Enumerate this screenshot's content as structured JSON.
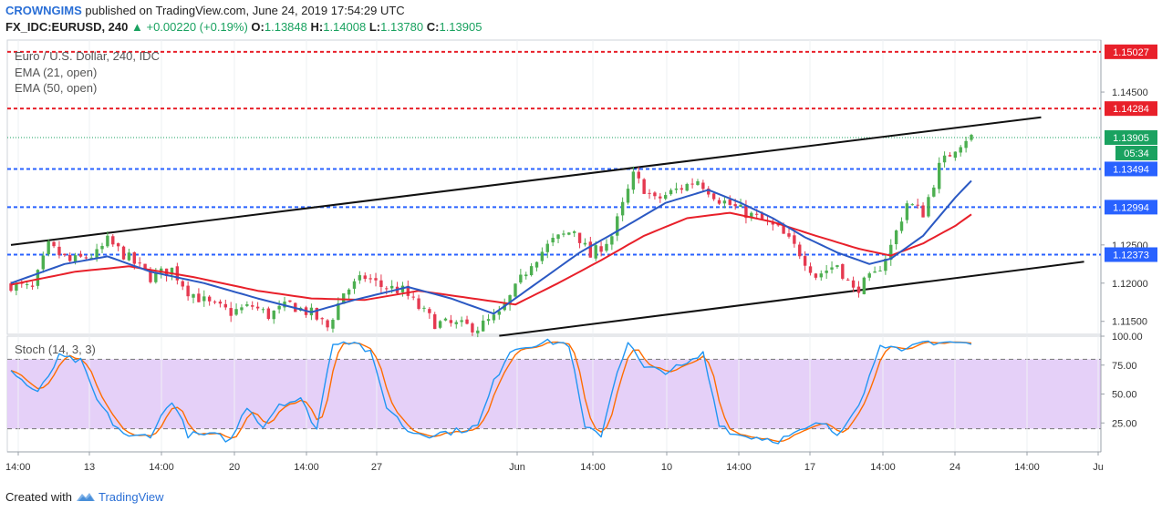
{
  "header": {
    "publisher": "CROWNGIMS",
    "published_text": "published on TradingView.com, June 24, 2019 17:54:29 UTC",
    "symbol": "FX_IDC:EURUSD, 240",
    "change": "▲ +0.00220 (+0.19%)",
    "open_label": "O:",
    "open": "1.13848",
    "high_label": "H:",
    "high": "1.14008",
    "low_label": "L:",
    "low": "1.13780",
    "close_label": "C:",
    "close": "1.13905"
  },
  "legend": {
    "title": "Euro / U.S. Dollar, 240, IDC",
    "ema21": "EMA (21, open)",
    "ema50": "EMA (50, open)",
    "stoch": "Stoch (14, 3, 3)"
  },
  "footer": {
    "created_with": "Created with",
    "brand": "TradingView"
  },
  "colors": {
    "up": "#26a69a",
    "down": "#ef5350",
    "up_fill": "#4caf50",
    "down_fill": "#e53950",
    "ema21": "#2b59c3",
    "ema50": "#e8202a",
    "stoch_k": "#2196f3",
    "stoch_d": "#ff6d00",
    "stoch_band": "#e1c8f7",
    "red_level": "#e8202a",
    "blue_level": "#2962ff",
    "current": "#1aa260"
  },
  "chart_data": {
    "type": "candlestick",
    "title": "Euro / U.S. Dollar, 240, IDC",
    "x_ticks": [
      "14:00",
      "13",
      "14:00",
      "20",
      "14:00",
      "27",
      "Jun",
      "14:00",
      "10",
      "14:00",
      "17",
      "14:00",
      "24",
      "14:00",
      "Ju"
    ],
    "y_ticks": [
      "1.11500",
      "1.12000",
      "1.12500",
      "1.14500"
    ],
    "ylim": [
      1.1133,
      1.1518
    ],
    "horizontal_levels": [
      {
        "value": 1.15027,
        "label": "1.15027",
        "style": "red-dashed"
      },
      {
        "value": 1.14284,
        "label": "1.14284",
        "style": "red-dashed"
      },
      {
        "value": 1.13494,
        "label": "1.13494",
        "style": "blue-dashed"
      },
      {
        "value": 1.12994,
        "label": "1.12994",
        "style": "blue-dashed"
      },
      {
        "value": 1.12373,
        "label": "1.12373",
        "style": "blue-dashed"
      }
    ],
    "current_price": {
      "value": 1.13905,
      "label": "1.13905",
      "countdown": "05:34"
    },
    "trend_lines": [
      {
        "name": "upper channel",
        "from": [
          0,
          1.125
        ],
        "to": [
          192,
          1.1417
        ]
      },
      {
        "name": "lower channel",
        "from": [
          91,
          1.1131
        ],
        "to": [
          200,
          1.1228
        ]
      }
    ],
    "ohlc_anchors": [
      [
        0,
        1.1198
      ],
      [
        4,
        1.1192
      ],
      [
        7,
        1.1248
      ],
      [
        11,
        1.1228
      ],
      [
        16,
        1.1238
      ],
      [
        18,
        1.1255
      ],
      [
        22,
        1.1232
      ],
      [
        26,
        1.1208
      ],
      [
        30,
        1.1218
      ],
      [
        33,
        1.119
      ],
      [
        37,
        1.1172
      ],
      [
        41,
        1.1162
      ],
      [
        45,
        1.117
      ],
      [
        48,
        1.1158
      ],
      [
        52,
        1.1172
      ],
      [
        56,
        1.116
      ],
      [
        59,
        1.1142
      ],
      [
        62,
        1.1188
      ],
      [
        66,
        1.1208
      ],
      [
        69,
        1.1196
      ],
      [
        73,
        1.119
      ],
      [
        76,
        1.1168
      ],
      [
        79,
        1.1148
      ],
      [
        83,
        1.1145
      ],
      [
        87,
        1.1142
      ],
      [
        91,
        1.1158
      ],
      [
        94,
        1.1192
      ],
      [
        97,
        1.1228
      ],
      [
        101,
        1.1255
      ],
      [
        105,
        1.127
      ],
      [
        108,
        1.1235
      ],
      [
        112,
        1.1262
      ],
      [
        116,
        1.134
      ],
      [
        120,
        1.1308
      ],
      [
        124,
        1.1322
      ],
      [
        128,
        1.1335
      ],
      [
        132,
        1.131
      ],
      [
        136,
        1.1295
      ],
      [
        139,
        1.1285
      ],
      [
        143,
        1.127
      ],
      [
        147,
        1.124
      ],
      [
        150,
        1.121
      ],
      [
        154,
        1.1225
      ],
      [
        157,
        1.119
      ],
      [
        161,
        1.121
      ],
      [
        164,
        1.1248
      ],
      [
        167,
        1.1305
      ],
      [
        170,
        1.1292
      ],
      [
        173,
        1.1352
      ],
      [
        176,
        1.1378
      ],
      [
        178,
        1.139
      ]
    ],
    "ema21_anchors": [
      [
        0,
        1.12
      ],
      [
        10,
        1.1225
      ],
      [
        18,
        1.1235
      ],
      [
        26,
        1.1215
      ],
      [
        36,
        1.12
      ],
      [
        46,
        1.118
      ],
      [
        56,
        1.1162
      ],
      [
        64,
        1.1178
      ],
      [
        74,
        1.1195
      ],
      [
        82,
        1.118
      ],
      [
        90,
        1.116
      ],
      [
        98,
        1.12
      ],
      [
        106,
        1.124
      ],
      [
        114,
        1.1272
      ],
      [
        122,
        1.1305
      ],
      [
        130,
        1.1322
      ],
      [
        136,
        1.1305
      ],
      [
        142,
        1.1285
      ],
      [
        148,
        1.126
      ],
      [
        154,
        1.124
      ],
      [
        160,
        1.1225
      ],
      [
        164,
        1.1232
      ],
      [
        170,
        1.1262
      ],
      [
        176,
        1.1312
      ],
      [
        179,
        1.1334
      ]
    ],
    "ema50_anchors": [
      [
        0,
        1.1198
      ],
      [
        12,
        1.1215
      ],
      [
        22,
        1.1222
      ],
      [
        34,
        1.1208
      ],
      [
        46,
        1.119
      ],
      [
        56,
        1.118
      ],
      [
        66,
        1.1178
      ],
      [
        76,
        1.119
      ],
      [
        86,
        1.118
      ],
      [
        94,
        1.1172
      ],
      [
        102,
        1.12
      ],
      [
        110,
        1.123
      ],
      [
        118,
        1.1262
      ],
      [
        126,
        1.1285
      ],
      [
        134,
        1.1292
      ],
      [
        142,
        1.128
      ],
      [
        150,
        1.1262
      ],
      [
        158,
        1.1245
      ],
      [
        164,
        1.1236
      ],
      [
        170,
        1.1252
      ],
      [
        176,
        1.1275
      ],
      [
        179,
        1.129
      ]
    ],
    "stoch": {
      "title": "Stoch (14, 3, 3)",
      "y_ticks": [
        "25.00",
        "50.00",
        "75.00",
        "100.00"
      ],
      "band": [
        20,
        80
      ],
      "k_anchors": [
        [
          0,
          70
        ],
        [
          5,
          50
        ],
        [
          9,
          82
        ],
        [
          13,
          78
        ],
        [
          16,
          45
        ],
        [
          19,
          25
        ],
        [
          22,
          12
        ],
        [
          26,
          15
        ],
        [
          30,
          45
        ],
        [
          33,
          15
        ],
        [
          38,
          14
        ],
        [
          41,
          10
        ],
        [
          44,
          40
        ],
        [
          47,
          22
        ],
        [
          50,
          42
        ],
        [
          54,
          45
        ],
        [
          57,
          20
        ],
        [
          60,
          95
        ],
        [
          64,
          96
        ],
        [
          67,
          85
        ],
        [
          70,
          40
        ],
        [
          74,
          18
        ],
        [
          78,
          15
        ],
        [
          83,
          18
        ],
        [
          87,
          22
        ],
        [
          90,
          60
        ],
        [
          93,
          88
        ],
        [
          97,
          93
        ],
        [
          101,
          95
        ],
        [
          104,
          93
        ],
        [
          107,
          20
        ],
        [
          110,
          15
        ],
        [
          113,
          70
        ],
        [
          115,
          95
        ],
        [
          118,
          72
        ],
        [
          122,
          70
        ],
        [
          126,
          75
        ],
        [
          129,
          85
        ],
        [
          132,
          25
        ],
        [
          135,
          15
        ],
        [
          140,
          12
        ],
        [
          143,
          10
        ],
        [
          146,
          15
        ],
        [
          151,
          25
        ],
        [
          154,
          15
        ],
        [
          159,
          50
        ],
        [
          162,
          95
        ],
        [
          166,
          85
        ],
        [
          170,
          95
        ],
        [
          175,
          95
        ],
        [
          179,
          93
        ]
      ]
    }
  }
}
